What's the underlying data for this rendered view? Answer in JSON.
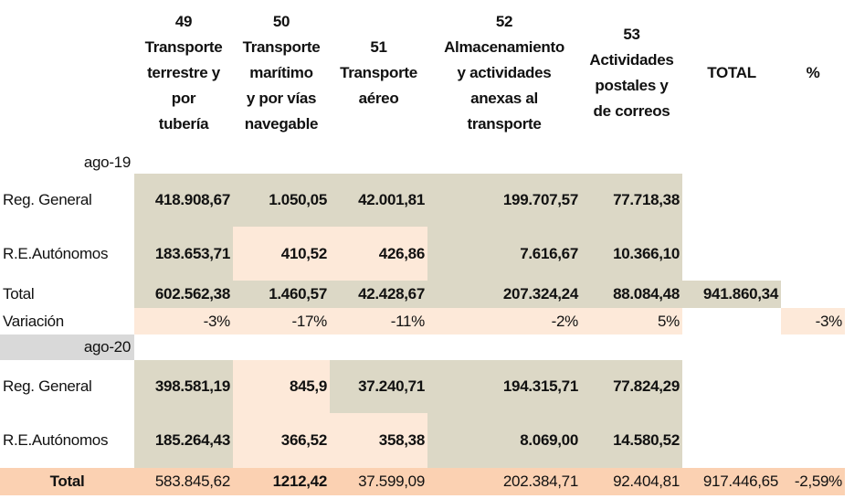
{
  "colors": {
    "olive": "#dcd8c6",
    "peach": "#fde9d9",
    "gray": "#d9d9d9",
    "orange": "#fbd1b2",
    "white": "#ffffff"
  },
  "headers": [
    {
      "lines": [
        "49",
        "Transporte",
        "terrestre y",
        "por",
        "tubería"
      ]
    },
    {
      "lines": [
        "50",
        "Transporte",
        "marítimo",
        "y por vías",
        "navegable"
      ]
    },
    {
      "lines": [
        "51",
        "Transporte",
        "aéreo"
      ]
    },
    {
      "lines": [
        "52",
        "Almacenamiento",
        "y actividades",
        "anexas al",
        "transporte"
      ]
    },
    {
      "lines": [
        "53",
        "Actividades",
        "postales y",
        "de correos"
      ]
    },
    {
      "lines": [
        "TOTAL"
      ]
    },
    {
      "lines": [
        "%"
      ]
    }
  ],
  "rows": [
    {
      "label": "ago-19",
      "label_fill": "white",
      "label_align": "right",
      "values": [
        "",
        "",
        "",
        "",
        "",
        "",
        ""
      ],
      "fills": [
        "white",
        "white",
        "white",
        "white",
        "white",
        "white",
        "white"
      ],
      "bold": [
        false,
        false,
        false,
        false,
        false,
        false,
        false
      ]
    },
    {
      "label": "Reg. General",
      "label_fill": "white",
      "label_align": "left",
      "values": [
        "418.908,67",
        "1.050,05",
        "42.001,81",
        "199.707,57",
        "77.718,38",
        "",
        ""
      ],
      "fills": [
        "olive",
        "olive",
        "olive",
        "olive",
        "olive",
        "white",
        "white"
      ],
      "bold": [
        true,
        true,
        true,
        true,
        true,
        false,
        false
      ]
    },
    {
      "label": "R.E.Autónomos",
      "label_fill": "white",
      "label_align": "left",
      "values": [
        "183.653,71",
        "410,52",
        "426,86",
        "7.616,67",
        "10.366,10",
        "",
        ""
      ],
      "fills": [
        "olive",
        "peach",
        "peach",
        "olive",
        "olive",
        "white",
        "white"
      ],
      "bold": [
        true,
        true,
        true,
        true,
        true,
        false,
        false
      ]
    },
    {
      "label": "Total",
      "label_fill": "white",
      "label_align": "left",
      "values": [
        "602.562,38",
        "1.460,57",
        "42.428,67",
        "207.324,24",
        "88.084,48",
        "941.860,34",
        ""
      ],
      "fills": [
        "olive",
        "olive",
        "olive",
        "olive",
        "olive",
        "olive",
        "white"
      ],
      "bold": [
        true,
        true,
        true,
        true,
        true,
        true,
        false
      ]
    },
    {
      "label": "Variación",
      "label_fill": "white",
      "label_align": "left",
      "values": [
        "-3%",
        "-17%",
        "-11%",
        "-2%",
        "5%",
        "",
        "-3%"
      ],
      "fills": [
        "peach",
        "peach",
        "peach",
        "peach",
        "peach",
        "white",
        "peach"
      ],
      "bold": [
        false,
        false,
        false,
        false,
        false,
        false,
        false
      ]
    },
    {
      "label": "ago-20",
      "label_fill": "gray",
      "label_align": "right",
      "values": [
        "",
        "",
        "",
        "",
        "",
        "",
        ""
      ],
      "fills": [
        "white",
        "white",
        "white",
        "white",
        "white",
        "white",
        "white"
      ],
      "bold": [
        false,
        false,
        false,
        false,
        false,
        false,
        false
      ]
    },
    {
      "label": "Reg. General",
      "label_fill": "white",
      "label_align": "left",
      "values": [
        "398.581,19",
        "845,9",
        "37.240,71",
        "194.315,71",
        "77.824,29",
        "",
        ""
      ],
      "fills": [
        "olive",
        "peach",
        "olive",
        "olive",
        "olive",
        "white",
        "white"
      ],
      "bold": [
        true,
        true,
        true,
        true,
        true,
        false,
        false
      ]
    },
    {
      "label": "R.E.Autónomos",
      "label_fill": "white",
      "label_align": "left",
      "values": [
        "185.264,43",
        "366,52",
        "358,38",
        "8.069,00",
        "14.580,52",
        "",
        ""
      ],
      "fills": [
        "olive",
        "peach",
        "peach",
        "olive",
        "olive",
        "white",
        "white"
      ],
      "bold": [
        true,
        true,
        true,
        true,
        true,
        false,
        false
      ]
    },
    {
      "label": "Total",
      "label_fill": "orange",
      "label_align": "center",
      "label_bold": true,
      "values": [
        "583.845,62",
        "1212,42",
        "37.599,09",
        "202.384,71",
        "92.404,81",
        "917.446,65",
        "-2,59%"
      ],
      "fills": [
        "orange",
        "orange",
        "orange",
        "orange",
        "orange",
        "orange",
        "orange"
      ],
      "bold": [
        false,
        true,
        false,
        false,
        false,
        false,
        false
      ]
    }
  ]
}
